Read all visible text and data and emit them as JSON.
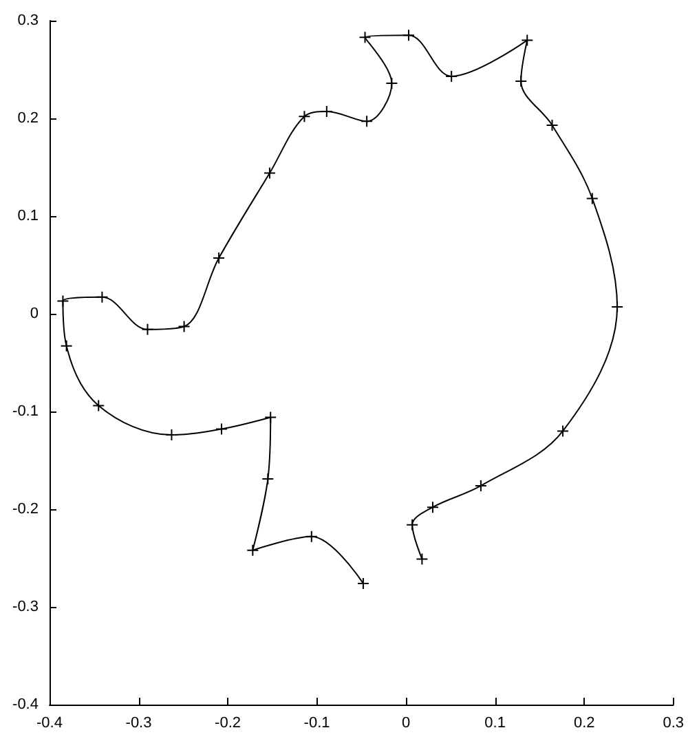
{
  "chart_data": {
    "type": "line",
    "marker": "cross",
    "line_style": "solid",
    "grid": false,
    "xlim": [
      -0.4,
      0.3
    ],
    "xticks": [
      -0.4,
      -0.3,
      -0.2,
      -0.1,
      0,
      0.1,
      0.2,
      0.3
    ],
    "ylim": [
      -0.4,
      0.3
    ],
    "yticks": [
      -0.4,
      -0.3,
      -0.2,
      -0.1,
      0,
      0.1,
      0.2,
      0.3
    ],
    "series": [
      {
        "color": "#000000",
        "x": [
          -0.048,
          -0.106,
          -0.172,
          -0.155,
          -0.152,
          -0.207,
          -0.263,
          -0.345,
          -0.381,
          -0.385,
          -0.341,
          -0.29,
          -0.249,
          -0.21,
          -0.153,
          -0.114,
          -0.089,
          -0.044,
          -0.016,
          -0.046,
          0.003,
          0.051,
          0.136,
          0.129,
          0.164,
          0.209,
          0.237,
          0.176,
          0.084,
          0.03,
          0.007,
          0.018
        ],
        "values": [
          -0.276,
          -0.228,
          -0.242,
          -0.169,
          -0.106,
          -0.118,
          -0.124,
          -0.094,
          -0.033,
          0.013,
          0.017,
          -0.016,
          -0.013,
          0.057,
          0.144,
          0.202,
          0.207,
          0.197,
          0.236,
          0.283,
          0.285,
          0.243,
          0.28,
          0.238,
          0.193,
          0.118,
          0.007,
          -0.12,
          -0.176,
          -0.198,
          -0.216,
          -0.251
        ]
      }
    ]
  }
}
